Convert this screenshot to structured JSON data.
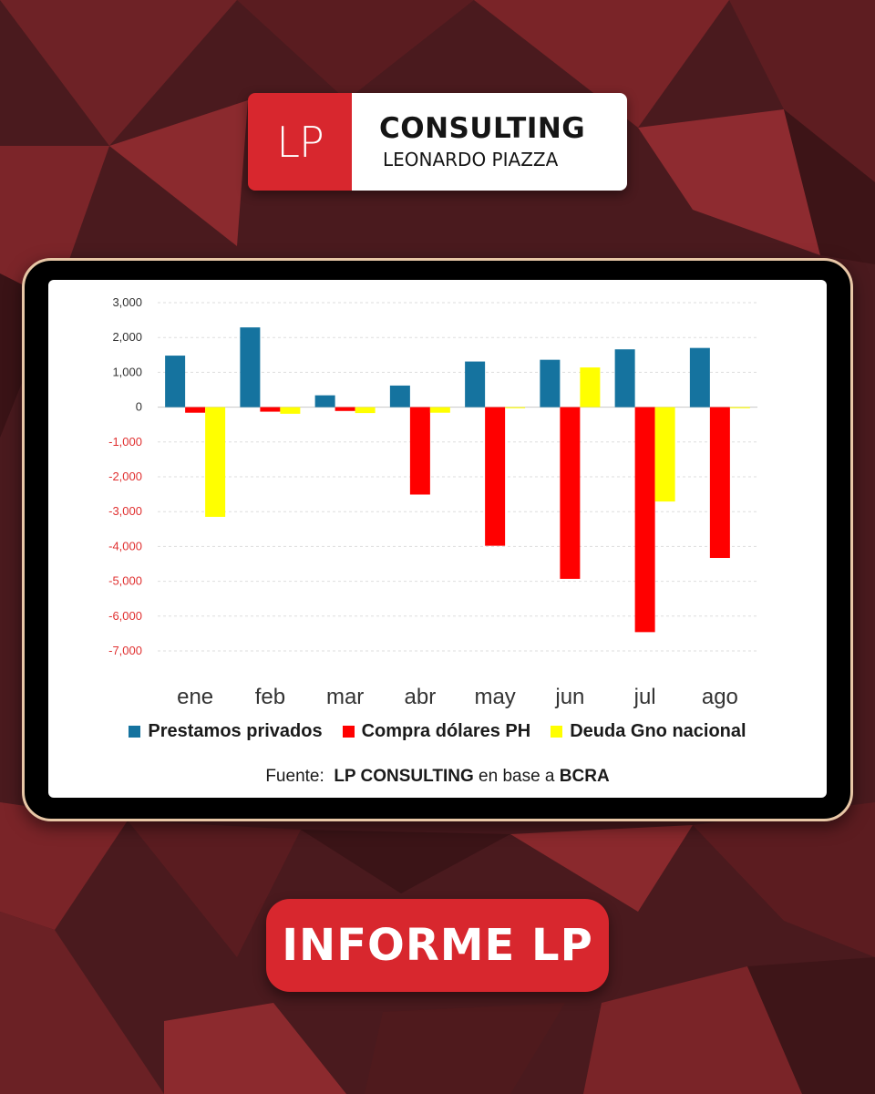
{
  "logo": {
    "mark": "LP",
    "title": "CONSULTING",
    "subtitle": "LEONARDO PIAZZA"
  },
  "colors": {
    "brand_red": "#d8272e",
    "series_blue": "#15739f",
    "series_red": "#ff0000",
    "series_yellow": "#ffff00",
    "negative_tick": "#e03030"
  },
  "chart_data": {
    "type": "bar",
    "categories": [
      "ene",
      "feb",
      "mar",
      "abr",
      "may",
      "jun",
      "jul",
      "ago"
    ],
    "series": [
      {
        "name": "Prestamos privados",
        "color": "#15739f",
        "values": [
          1480,
          2290,
          340,
          620,
          1310,
          1360,
          1660,
          1700
        ]
      },
      {
        "name": "Compra dólares PH",
        "color": "#ff0000",
        "values": [
          -160,
          -130,
          -110,
          -2510,
          -3980,
          -4930,
          -6460,
          -4330
        ]
      },
      {
        "name": "Deuda Gno nacional",
        "color": "#ffff00",
        "values": [
          -3150,
          -190,
          -170,
          -160,
          -30,
          1140,
          -2710,
          -30
        ]
      }
    ],
    "yticks": [
      "3,000",
      "2,000",
      "1,000",
      "0",
      "-1,000",
      "-2,000",
      "-3,000",
      "-4,000",
      "-5,000",
      "-6,000",
      "-7,000"
    ],
    "ylim": [
      -7000,
      3000
    ],
    "grid": true,
    "legend": "bottom"
  },
  "source": {
    "prefix": "Fuente:",
    "org": "LP CONSULTING",
    "mid": "en base a",
    "ref": "BCRA"
  },
  "button": {
    "label": "INFORME LP"
  }
}
